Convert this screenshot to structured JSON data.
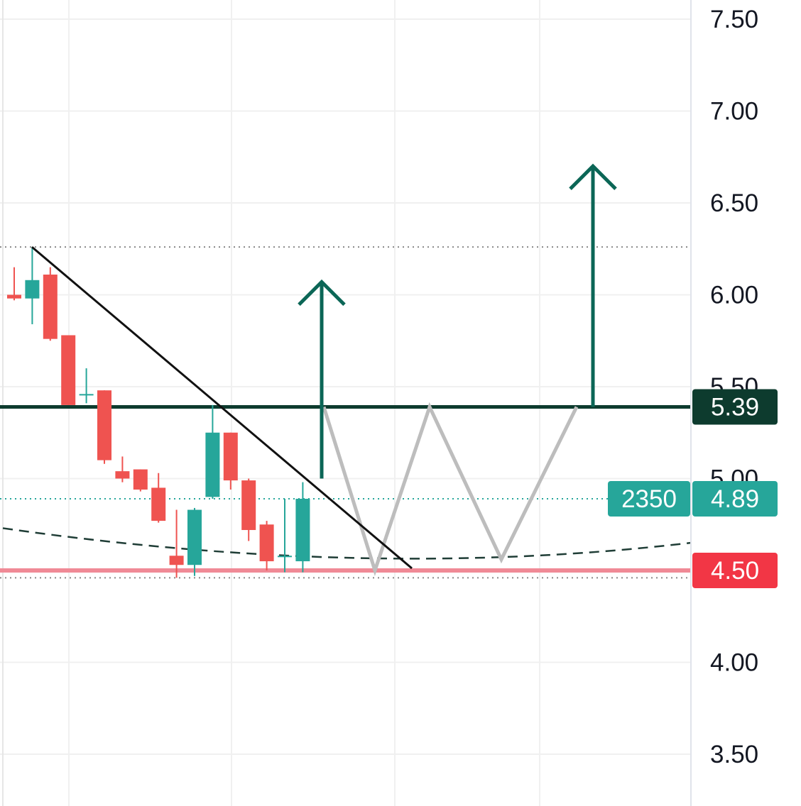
{
  "chart_data": {
    "type": "candlestick",
    "y_axis": {
      "ticks": [
        "3.50",
        "4.00",
        "4.50",
        "5.00",
        "5.50",
        "6.00",
        "6.50",
        "7.00",
        "7.50"
      ],
      "ylim": [
        3.3,
        7.6
      ]
    },
    "candles": [
      {
        "i": 0,
        "open": 6.0,
        "high": 6.15,
        "low": 5.97,
        "close": 5.98
      },
      {
        "i": 1,
        "open": 5.98,
        "high": 6.26,
        "low": 5.84,
        "close": 6.08
      },
      {
        "i": 2,
        "open": 6.11,
        "high": 6.15,
        "low": 5.75,
        "close": 5.76
      },
      {
        "i": 3,
        "open": 5.78,
        "high": 5.78,
        "low": 5.4,
        "close": 5.4
      },
      {
        "i": 4,
        "open": 5.46,
        "high": 5.6,
        "low": 5.41,
        "close": 5.46
      },
      {
        "i": 5,
        "open": 5.48,
        "high": 5.48,
        "low": 5.08,
        "close": 5.1
      },
      {
        "i": 6,
        "open": 5.04,
        "high": 5.12,
        "low": 4.98,
        "close": 5.0
      },
      {
        "i": 7,
        "open": 5.05,
        "high": 5.05,
        "low": 4.93,
        "close": 4.94
      },
      {
        "i": 8,
        "open": 4.95,
        "high": 5.03,
        "low": 4.76,
        "close": 4.77
      },
      {
        "i": 9,
        "open": 4.58,
        "high": 4.83,
        "low": 4.46,
        "close": 4.53
      },
      {
        "i": 10,
        "open": 4.53,
        "high": 4.84,
        "low": 4.47,
        "close": 4.83
      },
      {
        "i": 11,
        "open": 4.9,
        "high": 5.4,
        "low": 4.89,
        "close": 5.25
      },
      {
        "i": 12,
        "open": 5.25,
        "high": 5.25,
        "low": 4.94,
        "close": 4.99
      },
      {
        "i": 13,
        "open": 4.99,
        "high": 5.0,
        "low": 4.66,
        "close": 4.72
      },
      {
        "i": 14,
        "open": 4.75,
        "high": 4.77,
        "low": 4.5,
        "close": 4.55
      },
      {
        "i": 15,
        "open": 4.58,
        "high": 4.89,
        "low": 4.49,
        "close": 4.58
      },
      {
        "i": 16,
        "open": 4.55,
        "high": 4.98,
        "low": 4.49,
        "close": 4.89
      }
    ],
    "levels": {
      "resistance": 5.39,
      "support": 4.5,
      "last": 4.89,
      "dotted_top": 6.26,
      "dotted_bottom": 4.46
    },
    "projection_path": [
      4.5,
      5.39,
      4.5,
      5.39,
      4.56,
      5.39
    ],
    "arrow_1": {
      "from": 5.0,
      "to": 6.07
    },
    "arrow_2": {
      "from": 5.39,
      "to": 6.7
    },
    "trendline": {
      "from": 6.26,
      "to": 4.5
    },
    "curve": {
      "left": 4.73,
      "bottom": 4.53,
      "right": 4.65
    }
  },
  "price_badges": {
    "resistance": "5.39",
    "last_volume": "2350",
    "last_price": "4.89",
    "support": "4.50"
  },
  "colors": {
    "up": "#26a69a",
    "down": "#ef5350",
    "resistance": "#0d3b2e",
    "arrow": "#0b6656",
    "support": "#f08a96",
    "support_badge": "#f23645",
    "last_badge": "#26a69a",
    "projection": "#bdbdbd",
    "grid": "#f0f0f0"
  }
}
